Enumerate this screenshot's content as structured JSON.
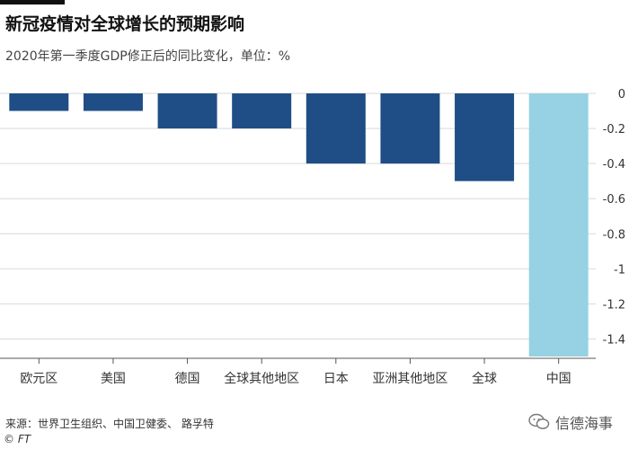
{
  "header": {
    "title": "新冠疫情对全球增长的预期影响",
    "subtitle": "2020年第一季度GDP修正后的同比变化，单位：%"
  },
  "footer": {
    "source": "来源：世界卫生组织、中国卫健委、 路孚特",
    "credit": "© FT",
    "watermark": "信德海事"
  },
  "colors": {
    "primary_bar": "#1f4e86",
    "highlight_bar": "#96d2e3",
    "grid": "#d9d9d9",
    "text": "#333333"
  },
  "chart_data": {
    "type": "bar",
    "title": "新冠疫情对全球增长的预期影响",
    "subtitle": "2020年第一季度GDP修正后的同比变化，单位：%",
    "categories": [
      "欧元区",
      "美国",
      "德国",
      "全球其他地区",
      "日本",
      "亚洲其他地区",
      "全球",
      "中国"
    ],
    "values": [
      -0.1,
      -0.1,
      -0.2,
      -0.2,
      -0.4,
      -0.4,
      -0.5,
      -1.5
    ],
    "highlight": "中国",
    "ylim": [
      -1.5,
      0
    ],
    "yticks": [
      0,
      -0.2,
      -0.4,
      -0.6,
      -0.8,
      -1,
      -1.2,
      -1.4
    ],
    "ytick_labels": [
      "0",
      "-0.2",
      "-0.4",
      "-0.6",
      "-0.8",
      "-1",
      "-1.2",
      "-1.4"
    ],
    "y_axis_side": "right",
    "grid": true,
    "xlabel": "",
    "ylabel": ""
  }
}
